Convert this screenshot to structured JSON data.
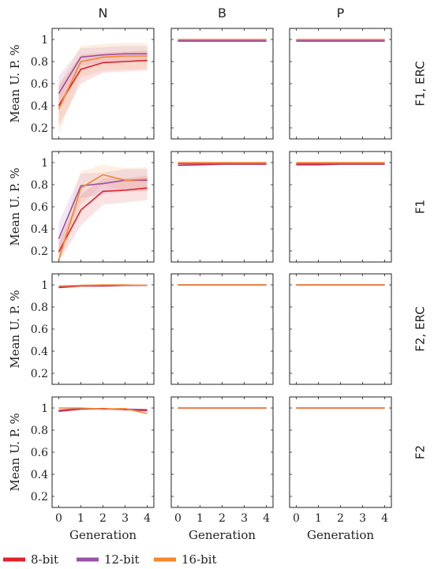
{
  "colors": {
    "8-bit": "#e0202a",
    "12-bit": "#9b4fa8",
    "16-bit": "#f5862a"
  },
  "column_titles": [
    "N",
    "B",
    "P"
  ],
  "row_titles": [
    "F1, ERC",
    "F1",
    "F2, ERC",
    "F2"
  ],
  "legend": [
    "8-bit",
    "12-bit",
    "16-bit"
  ],
  "chart_data": {
    "type": "line",
    "layout": "grid 4 rows x 3 columns (shared axes)",
    "x": [
      0,
      1,
      2,
      3,
      4
    ],
    "xlabel": "Generation",
    "ylabel": "Mean U. P. %",
    "xlim": [
      -0.3,
      4.3
    ],
    "ylim": [
      0.1,
      1.1
    ],
    "xticks": [
      "0",
      "1",
      "2",
      "3",
      "4"
    ],
    "yticks": [
      "0.2",
      "0.4",
      "0.6",
      "0.8",
      "1"
    ],
    "grid": false,
    "legend_position": "bottom",
    "panels": [
      {
        "row": "F1, ERC",
        "col": "N",
        "series": [
          {
            "name": "8-bit",
            "values": [
              0.4,
              0.73,
              0.79,
              0.8,
              0.81
            ],
            "band": [
              0.22,
              0.6,
              0.7,
              0.71,
              0.72
            ],
            "band_hi": [
              0.58,
              0.86,
              0.88,
              0.89,
              0.9
            ]
          },
          {
            "name": "12-bit",
            "values": [
              0.51,
              0.84,
              0.86,
              0.87,
              0.87
            ],
            "band": [
              0.35,
              0.76,
              0.79,
              0.8,
              0.8
            ],
            "band_hi": [
              0.67,
              0.92,
              0.93,
              0.94,
              0.94
            ]
          },
          {
            "name": "16-bit",
            "values": [
              0.37,
              0.8,
              0.84,
              0.85,
              0.85
            ],
            "band": [
              0.15,
              0.66,
              0.72,
              0.73,
              0.73
            ],
            "band_hi": [
              0.59,
              0.94,
              0.96,
              0.97,
              0.97
            ]
          }
        ]
      },
      {
        "row": "F1, ERC",
        "col": "B",
        "series": [
          {
            "name": "8-bit",
            "values": [
              0.985,
              0.985,
              0.985,
              0.985,
              0.985
            ]
          },
          {
            "name": "12-bit",
            "values": [
              0.99,
              0.99,
              0.99,
              0.99,
              0.99
            ]
          },
          {
            "name": "16-bit",
            "values": [
              1.0,
              1.0,
              1.0,
              1.0,
              1.0
            ]
          }
        ]
      },
      {
        "row": "F1, ERC",
        "col": "P",
        "series": [
          {
            "name": "8-bit",
            "values": [
              0.985,
              0.985,
              0.985,
              0.985,
              0.985
            ]
          },
          {
            "name": "12-bit",
            "values": [
              0.99,
              0.99,
              0.99,
              0.99,
              0.99
            ]
          },
          {
            "name": "16-bit",
            "values": [
              1.0,
              1.0,
              1.0,
              1.0,
              1.0
            ]
          }
        ]
      },
      {
        "row": "F1",
        "col": "N",
        "series": [
          {
            "name": "8-bit",
            "values": [
              0.19,
              0.57,
              0.74,
              0.75,
              0.77
            ],
            "band": [
              0.1,
              0.43,
              0.62,
              0.64,
              0.66
            ],
            "band_hi": [
              0.28,
              0.71,
              0.86,
              0.86,
              0.88
            ]
          },
          {
            "name": "12-bit",
            "values": [
              0.31,
              0.79,
              0.81,
              0.84,
              0.84
            ],
            "band": [
              0.16,
              0.68,
              0.71,
              0.74,
              0.74
            ],
            "band_hi": [
              0.46,
              0.9,
              0.91,
              0.94,
              0.94
            ]
          },
          {
            "name": "16-bit",
            "values": [
              0.12,
              0.77,
              0.89,
              0.84,
              0.85
            ],
            "band": [
              0.1,
              0.62,
              0.8,
              0.74,
              0.74
            ],
            "band_hi": [
              0.25,
              0.92,
              0.98,
              0.95,
              0.96
            ]
          }
        ]
      },
      {
        "row": "F1",
        "col": "B",
        "series": [
          {
            "name": "8-bit",
            "values": [
              0.975,
              0.98,
              0.985,
              0.985,
              0.985
            ]
          },
          {
            "name": "12-bit",
            "values": [
              0.99,
              0.99,
              0.99,
              0.99,
              0.99
            ]
          },
          {
            "name": "16-bit",
            "values": [
              1.0,
              1.0,
              1.0,
              1.0,
              1.0
            ]
          }
        ]
      },
      {
        "row": "F1",
        "col": "P",
        "series": [
          {
            "name": "8-bit",
            "values": [
              0.98,
              0.98,
              0.985,
              0.985,
              0.985
            ]
          },
          {
            "name": "12-bit",
            "values": [
              0.99,
              0.99,
              0.99,
              0.99,
              0.99
            ]
          },
          {
            "name": "16-bit",
            "values": [
              1.0,
              1.0,
              1.0,
              1.0,
              1.0
            ]
          }
        ]
      },
      {
        "row": "F2, ERC",
        "col": "N",
        "series": [
          {
            "name": "8-bit",
            "values": [
              0.975,
              0.99,
              0.99,
              0.995,
              0.995
            ]
          },
          {
            "name": "12-bit",
            "values": [
              0.985,
              0.995,
              0.995,
              0.995,
              0.995
            ]
          },
          {
            "name": "16-bit",
            "values": [
              0.99,
              0.995,
              1.0,
              1.0,
              0.995
            ]
          }
        ]
      },
      {
        "row": "F2, ERC",
        "col": "B",
        "series": [
          {
            "name": "8-bit",
            "values": [
              1.0,
              1.0,
              1.0,
              1.0,
              1.0
            ]
          },
          {
            "name": "12-bit",
            "values": [
              1.0,
              1.0,
              1.0,
              1.0,
              1.0
            ]
          },
          {
            "name": "16-bit",
            "values": [
              1.0,
              1.0,
              1.0,
              1.0,
              1.0
            ]
          }
        ]
      },
      {
        "row": "F2, ERC",
        "col": "P",
        "series": [
          {
            "name": "8-bit",
            "values": [
              1.0,
              1.0,
              1.0,
              1.0,
              1.0
            ]
          },
          {
            "name": "12-bit",
            "values": [
              1.0,
              1.0,
              1.0,
              1.0,
              1.0
            ]
          },
          {
            "name": "16-bit",
            "values": [
              1.0,
              1.0,
              1.0,
              1.0,
              1.0
            ]
          }
        ]
      },
      {
        "row": "F2",
        "col": "N",
        "series": [
          {
            "name": "8-bit",
            "values": [
              0.97,
              0.99,
              0.995,
              0.985,
              0.975
            ]
          },
          {
            "name": "12-bit",
            "values": [
              0.98,
              0.995,
              0.99,
              0.99,
              0.985
            ]
          },
          {
            "name": "16-bit",
            "values": [
              1.0,
              1.0,
              0.99,
              0.995,
              0.95
            ]
          }
        ]
      },
      {
        "row": "F2",
        "col": "B",
        "series": [
          {
            "name": "8-bit",
            "values": [
              1.0,
              1.0,
              1.0,
              1.0,
              1.0
            ]
          },
          {
            "name": "12-bit",
            "values": [
              1.0,
              1.0,
              1.0,
              1.0,
              1.0
            ]
          },
          {
            "name": "16-bit",
            "values": [
              1.0,
              1.0,
              1.0,
              1.0,
              1.0
            ]
          }
        ]
      },
      {
        "row": "F2",
        "col": "P",
        "series": [
          {
            "name": "8-bit",
            "values": [
              1.0,
              1.0,
              1.0,
              1.0,
              1.0
            ]
          },
          {
            "name": "12-bit",
            "values": [
              1.0,
              1.0,
              1.0,
              1.0,
              1.0
            ]
          },
          {
            "name": "16-bit",
            "values": [
              1.0,
              1.0,
              1.0,
              1.0,
              1.0
            ]
          }
        ]
      }
    ]
  }
}
